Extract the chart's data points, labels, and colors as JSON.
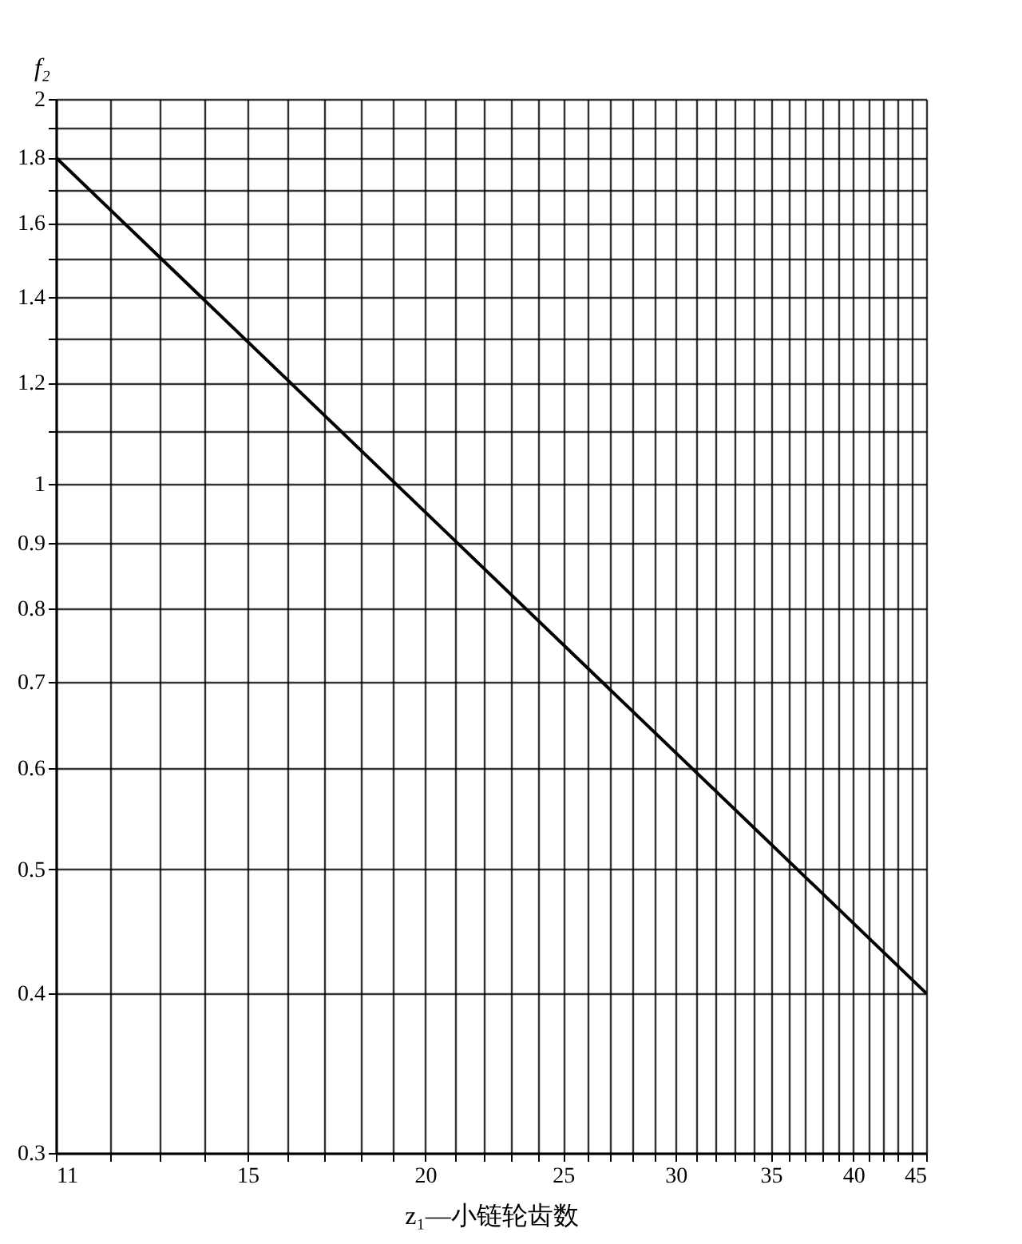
{
  "chart_data": {
    "type": "line",
    "xlabel": "z₁—小链轮齿数",
    "ylabel": "f₂",
    "log": "xy",
    "grid": true,
    "marker": "none",
    "line_style": "solid",
    "x": [
      11,
      45
    ],
    "series": [
      {
        "color": "#000000",
        "values": [
          1.8,
          0.4
        ]
      }
    ],
    "xlim": [
      11,
      45
    ],
    "xticks": [
      11,
      {
        "value": 12,
        "label": null
      },
      {
        "value": 13,
        "label": null
      },
      {
        "value": 14,
        "label": null
      },
      15,
      {
        "value": 16,
        "label": null
      },
      {
        "value": 17,
        "label": null
      },
      {
        "value": 18,
        "label": null
      },
      {
        "value": 19,
        "label": null
      },
      20,
      {
        "value": 21,
        "label": null
      },
      {
        "value": 22,
        "label": null
      },
      {
        "value": 23,
        "label": null
      },
      {
        "value": 24,
        "label": null
      },
      25,
      {
        "value": 26,
        "label": null
      },
      {
        "value": 27,
        "label": null
      },
      {
        "value": 28,
        "label": null
      },
      {
        "value": 29,
        "label": null
      },
      30,
      {
        "value": 31,
        "label": null
      },
      {
        "value": 32,
        "label": null
      },
      {
        "value": 33,
        "label": null
      },
      {
        "value": 34,
        "label": null
      },
      35,
      {
        "value": 36,
        "label": null
      },
      {
        "value": 37,
        "label": null
      },
      {
        "value": 38,
        "label": null
      },
      {
        "value": 39,
        "label": null
      },
      40,
      {
        "value": 41,
        "label": null
      },
      {
        "value": 42,
        "label": null
      },
      {
        "value": 43,
        "label": null
      },
      {
        "value": 44,
        "label": null
      },
      45
    ],
    "ylim": [
      0.3,
      2
    ],
    "yticks": [
      0.3,
      0.4,
      0.5,
      0.6,
      0.7,
      0.8,
      0.9,
      1,
      {
        "value": 1.1,
        "label": null
      },
      1.2,
      {
        "value": 1.3,
        "label": null
      },
      1.4,
      {
        "value": 1.5,
        "label": null
      },
      1.6,
      {
        "value": 1.7,
        "label": null
      },
      1.8,
      {
        "value": 1.9,
        "label": null
      },
      2
    ]
  }
}
